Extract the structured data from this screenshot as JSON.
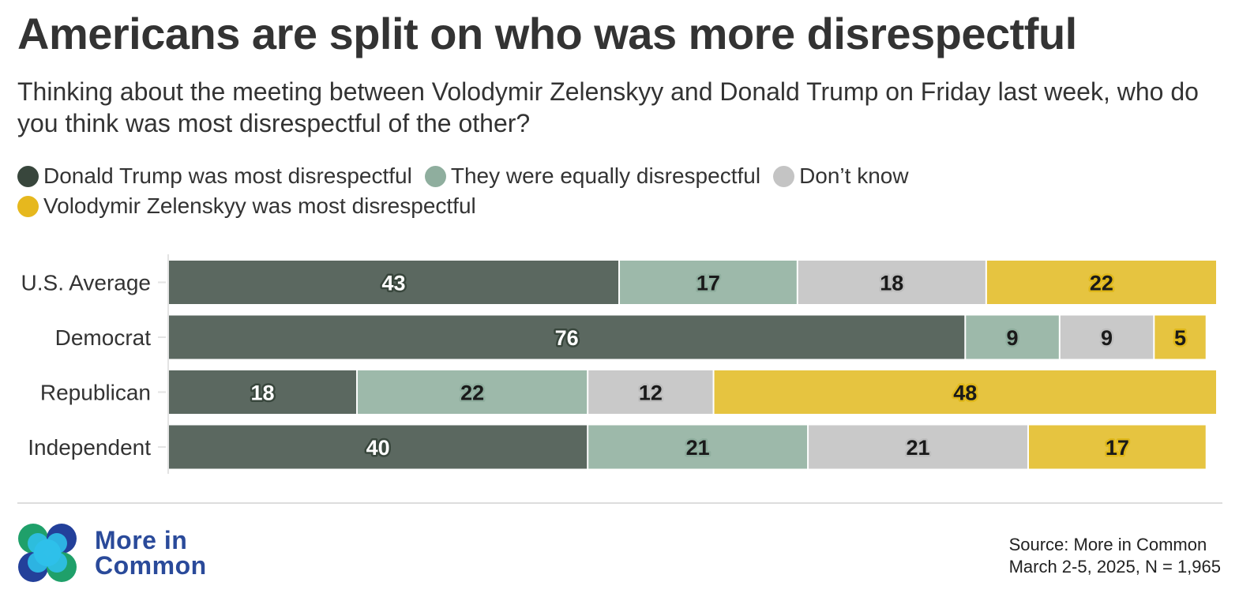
{
  "title": "Americans are split on who was more disrespectful",
  "subtitle": "Thinking about the meeting between Volodymir Zelenskyy and Donald Trump on Friday last week, who do you think was most disrespectful of the other?",
  "legend": [
    {
      "label": "Donald Trump was most disrespectful",
      "color": "#38463c"
    },
    {
      "label": "They were equally disrespectful",
      "color": "#8fae9e"
    },
    {
      "label": "Don’t know",
      "color": "#c4c4c4"
    },
    {
      "label": "Volodymir Zelenskyy was most disrespectful",
      "color": "#e6b81e"
    }
  ],
  "chart_data": {
    "type": "bar",
    "orientation": "horizontal-stacked-100",
    "categories": [
      "U.S. Average",
      "Democrat",
      "Republican",
      "Independent"
    ],
    "series": [
      {
        "name": "Donald Trump was most disrespectful",
        "values": [
          43,
          76,
          18,
          40
        ],
        "color": "#5b6860",
        "label_color": "#ffffff",
        "outline_color": "#38463c"
      },
      {
        "name": "They were equally disrespectful",
        "values": [
          17,
          9,
          22,
          21
        ],
        "color": "#9db9aa",
        "label_color": "#1a1a1a",
        "outline_color": "#8fae9e"
      },
      {
        "name": "Don’t know",
        "values": [
          18,
          9,
          12,
          21
        ],
        "color": "#c9c9c9",
        "label_color": "#1a1a1a",
        "outline_color": "#bdbdbd"
      },
      {
        "name": "Volodymir Zelenskyy was most disrespectful",
        "values": [
          22,
          5,
          48,
          17
        ],
        "color": "#e6c440",
        "label_color": "#1a1a1a",
        "outline_color": "#e0b81a"
      }
    ],
    "xlim": [
      0,
      100
    ],
    "grid": false,
    "legend_position": "top"
  },
  "brand": {
    "line1": "More in",
    "line2": "Common"
  },
  "source": {
    "line1": "Source: More in Common",
    "line2": "March 2-5, 2025, N = 1,965"
  }
}
